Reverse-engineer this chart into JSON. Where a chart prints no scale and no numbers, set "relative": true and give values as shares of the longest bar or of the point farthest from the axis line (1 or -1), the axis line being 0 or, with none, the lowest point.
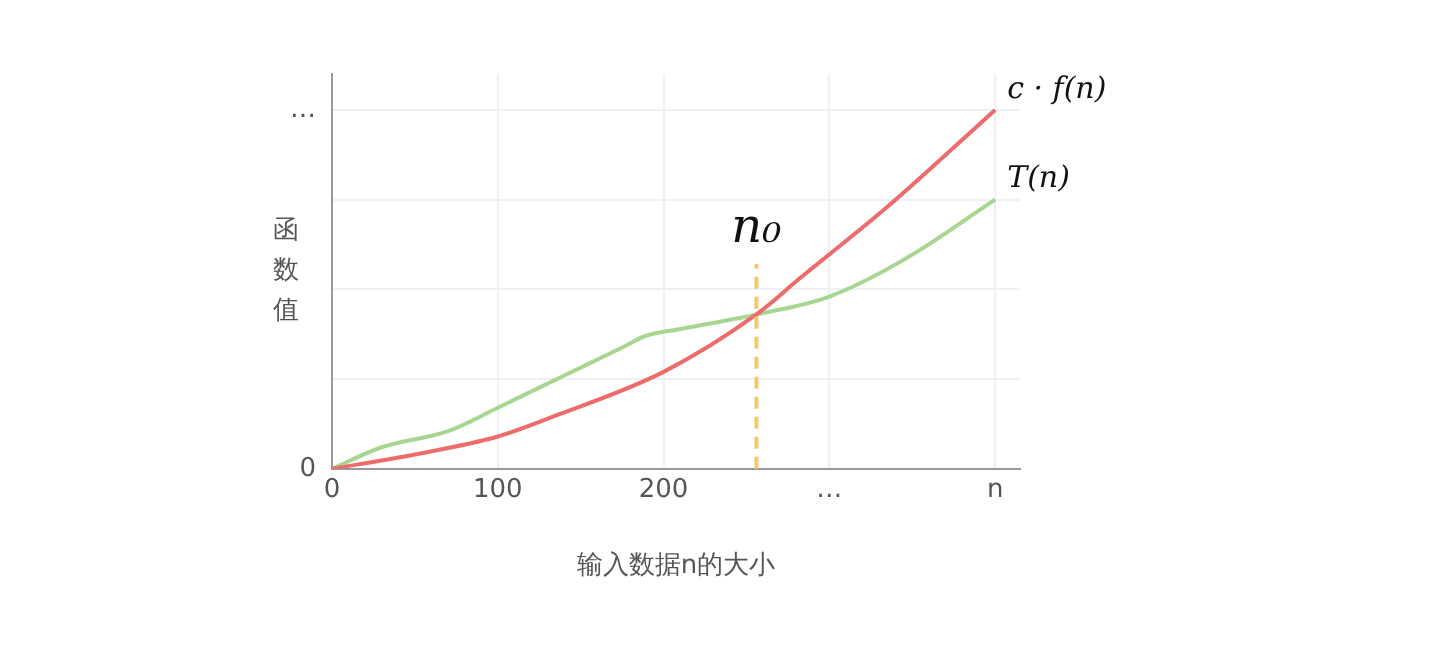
{
  "chart_data": {
    "type": "line",
    "xlabel": "输入数据n的大小",
    "ylabel": "函数值",
    "xlim": [
      0,
      415
    ],
    "xticks": [
      0,
      100,
      200,
      {
        "value": 300,
        "label": "…"
      },
      {
        "value": 400,
        "label": "n"
      }
    ],
    "relative": true,
    "annotations": [
      "0",
      "…"
    ],
    "grid": true,
    "legend": false,
    "marker": "none",
    "line_style": "solid",
    "series": [
      {
        "name": "c · f(n)",
        "color": "#ee6b6b",
        "x": [
          0,
          50,
          100,
          136,
          200,
          256,
          282,
          335,
          400
        ],
        "values": [
          0,
          0.04,
          0.09,
          0.15,
          0.27,
          0.43,
          0.53,
          0.73,
          1.0
        ]
      },
      {
        "name": "T(n)",
        "color": "#a6d68f",
        "x": [
          0,
          30,
          70,
          100,
          176,
          189,
          211,
          256,
          300,
          344,
          400
        ],
        "values": [
          0,
          0.06,
          0.105,
          0.17,
          0.34,
          0.37,
          0.39,
          0.43,
          0.48,
          0.58,
          0.75
        ]
      }
    ],
    "ref_lines": [
      {
        "axis": "x",
        "value": 256,
        "label": "n₀",
        "color": "#f5c76b",
        "line_style": "dashed"
      }
    ]
  }
}
